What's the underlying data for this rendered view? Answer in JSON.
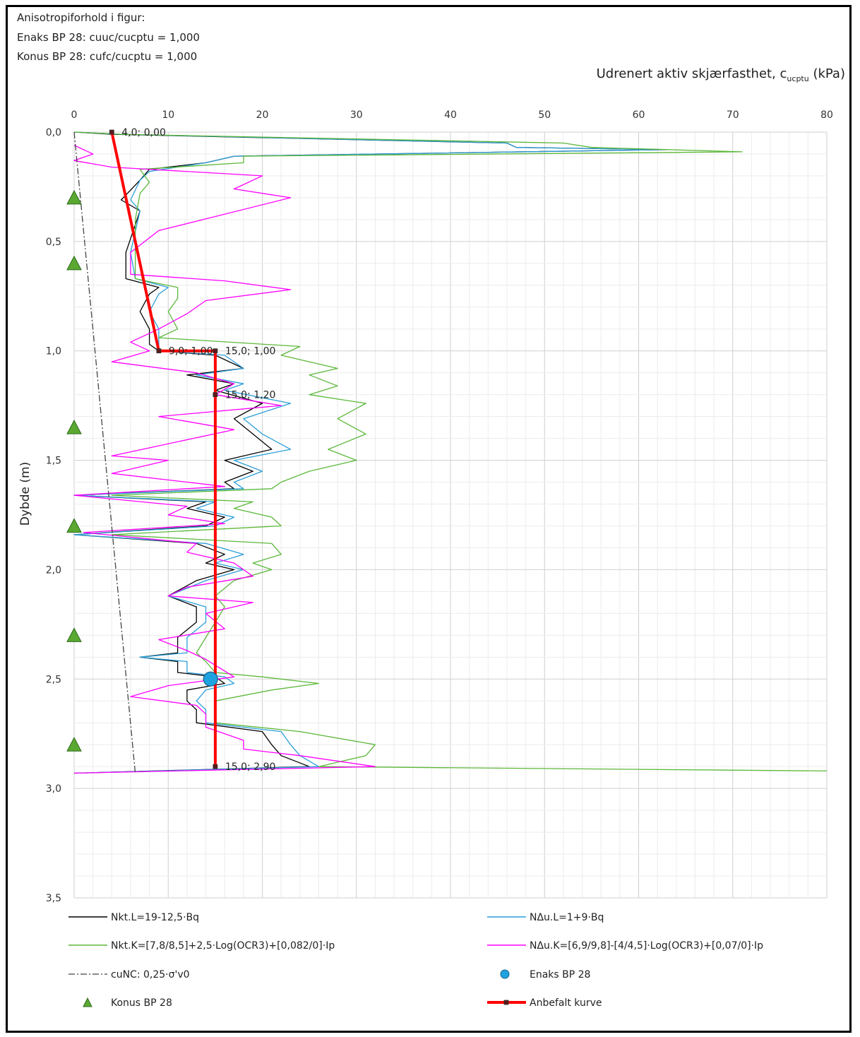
{
  "notes": [
    "Anisotropiforhold i figur:",
    "Enaks BP 28: cuuc/cucptu = 1,000",
    "Konus BP 28: cufc/cucptu = 1,000"
  ],
  "chart_data": {
    "type": "line",
    "title": "",
    "xlabel": "Udrenert aktiv skjærfasthet, c",
    "xlabel_sub": "ucptu",
    "xlabel_unit": " (kPa)",
    "ylabel": "Dybde (m)",
    "xlim": [
      0,
      80
    ],
    "ylim": [
      0,
      3.5
    ],
    "y_inverted": true,
    "x_axis_position": "top",
    "grid": true,
    "xticks": [
      "0",
      "10",
      "20",
      "30",
      "40",
      "50",
      "60",
      "70",
      "80"
    ],
    "yticks": [
      "0,0",
      "0,5",
      "1,0",
      "1,5",
      "2,0",
      "2,5",
      "3,0",
      "3,5"
    ],
    "series": [
      {
        "name": "Nkt.L=19-12,5·Bq",
        "color": "#000000",
        "points": [
          [
            0,
            0.0
          ],
          [
            4,
            0.01
          ],
          [
            46,
            0.05
          ],
          [
            47,
            0.07
          ],
          [
            63,
            0.08
          ],
          [
            17,
            0.11
          ],
          [
            14,
            0.14
          ],
          [
            8,
            0.17
          ],
          [
            7,
            0.22
          ],
          [
            5,
            0.31
          ],
          [
            7,
            0.36
          ],
          [
            5.5,
            0.55
          ],
          [
            5.5,
            0.67
          ],
          [
            9,
            0.71
          ],
          [
            8,
            0.74
          ],
          [
            7,
            0.82
          ],
          [
            8,
            0.9
          ],
          [
            8,
            0.97
          ],
          [
            9,
            1.0
          ],
          [
            15,
            1.02
          ],
          [
            18,
            1.08
          ],
          [
            12,
            1.11
          ],
          [
            17,
            1.15
          ],
          [
            15,
            1.18
          ],
          [
            20,
            1.24
          ],
          [
            17,
            1.31
          ],
          [
            19,
            1.38
          ],
          [
            21,
            1.45
          ],
          [
            16,
            1.5
          ],
          [
            19,
            1.55
          ],
          [
            16,
            1.6
          ],
          [
            17,
            1.63
          ],
          [
            0,
            1.66
          ],
          [
            14,
            1.69
          ],
          [
            12,
            1.72
          ],
          [
            16,
            1.76
          ],
          [
            14,
            1.8
          ],
          [
            0,
            1.84
          ],
          [
            13,
            1.88
          ],
          [
            16,
            1.93
          ],
          [
            14,
            1.97
          ],
          [
            17,
            2.0
          ],
          [
            13,
            2.05
          ],
          [
            10,
            2.12
          ],
          [
            13,
            2.17
          ],
          [
            13,
            2.24
          ],
          [
            11,
            2.31
          ],
          [
            11,
            2.38
          ],
          [
            7,
            2.4
          ],
          [
            11,
            2.42
          ],
          [
            11,
            2.47
          ],
          [
            15,
            2.49
          ],
          [
            16,
            2.52
          ],
          [
            12,
            2.55
          ],
          [
            12,
            2.6
          ],
          [
            13,
            2.64
          ],
          [
            13,
            2.7
          ],
          [
            20,
            2.74
          ],
          [
            21,
            2.8
          ],
          [
            22,
            2.85
          ],
          [
            25,
            2.9
          ],
          [
            0,
            2.93
          ]
        ]
      },
      {
        "name": "NΔu.L=1+9·Bq",
        "color": "#2b9fd8",
        "points": [
          [
            0,
            0.0
          ],
          [
            5,
            0.01
          ],
          [
            46,
            0.05
          ],
          [
            47,
            0.07
          ],
          [
            63,
            0.08
          ],
          [
            17,
            0.11
          ],
          [
            14,
            0.14
          ],
          [
            8,
            0.18
          ],
          [
            7,
            0.22
          ],
          [
            6,
            0.31
          ],
          [
            7,
            0.36
          ],
          [
            6,
            0.55
          ],
          [
            6.5,
            0.67
          ],
          [
            10,
            0.71
          ],
          [
            9,
            0.74
          ],
          [
            8,
            0.82
          ],
          [
            9,
            0.9
          ],
          [
            9,
            0.97
          ],
          [
            9,
            1.0
          ],
          [
            16,
            1.02
          ],
          [
            18,
            1.08
          ],
          [
            13,
            1.11
          ],
          [
            18,
            1.15
          ],
          [
            16,
            1.18
          ],
          [
            23,
            1.24
          ],
          [
            18,
            1.31
          ],
          [
            20,
            1.38
          ],
          [
            23,
            1.45
          ],
          [
            17,
            1.5
          ],
          [
            20,
            1.55
          ],
          [
            17,
            1.6
          ],
          [
            18,
            1.63
          ],
          [
            0,
            1.66
          ],
          [
            15,
            1.69
          ],
          [
            13,
            1.72
          ],
          [
            17,
            1.76
          ],
          [
            15,
            1.8
          ],
          [
            0,
            1.84
          ],
          [
            14,
            1.88
          ],
          [
            18,
            1.93
          ],
          [
            15,
            1.97
          ],
          [
            18,
            2.0
          ],
          [
            14,
            2.05
          ],
          [
            10,
            2.12
          ],
          [
            14,
            2.17
          ],
          [
            14,
            2.24
          ],
          [
            12,
            2.31
          ],
          [
            12,
            2.38
          ],
          [
            7,
            2.4
          ],
          [
            12,
            2.42
          ],
          [
            12,
            2.47
          ],
          [
            16,
            2.49
          ],
          [
            17,
            2.52
          ],
          [
            14,
            2.55
          ],
          [
            13,
            2.6
          ],
          [
            14,
            2.64
          ],
          [
            14,
            2.7
          ],
          [
            22,
            2.74
          ],
          [
            23,
            2.8
          ],
          [
            24,
            2.85
          ],
          [
            26,
            2.9
          ],
          [
            0,
            2.93
          ]
        ]
      },
      {
        "name": "Nkt.K=[7,8/8,5]+2,5·Log(OCR3)+[0,082/0]·Ip",
        "color": "#5cb83a",
        "points": [
          [
            0,
            0.0
          ],
          [
            5,
            0.01
          ],
          [
            52,
            0.05
          ],
          [
            55,
            0.07
          ],
          [
            71,
            0.09
          ],
          [
            18,
            0.11
          ],
          [
            18,
            0.14
          ],
          [
            7,
            0.17
          ],
          [
            8,
            0.23
          ],
          [
            7,
            0.28
          ],
          [
            6.5,
            0.4
          ],
          [
            6.5,
            0.67
          ],
          [
            11,
            0.71
          ],
          [
            11,
            0.76
          ],
          [
            10,
            0.82
          ],
          [
            11,
            0.9
          ],
          [
            9,
            0.94
          ],
          [
            24,
            0.98
          ],
          [
            22,
            1.02
          ],
          [
            28,
            1.08
          ],
          [
            25,
            1.11
          ],
          [
            28,
            1.16
          ],
          [
            25,
            1.2
          ],
          [
            31,
            1.24
          ],
          [
            28,
            1.31
          ],
          [
            31,
            1.38
          ],
          [
            27,
            1.45
          ],
          [
            30,
            1.5
          ],
          [
            25,
            1.55
          ],
          [
            22,
            1.6
          ],
          [
            21,
            1.63
          ],
          [
            4,
            1.66
          ],
          [
            19,
            1.69
          ],
          [
            17,
            1.72
          ],
          [
            21,
            1.76
          ],
          [
            22,
            1.8
          ],
          [
            4,
            1.84
          ],
          [
            21,
            1.88
          ],
          [
            22,
            1.93
          ],
          [
            19,
            1.97
          ],
          [
            21,
            2.0
          ],
          [
            17,
            2.05
          ],
          [
            15,
            2.12
          ],
          [
            16,
            2.17
          ],
          [
            15,
            2.24
          ],
          [
            14,
            2.31
          ],
          [
            13,
            2.38
          ],
          [
            14,
            2.42
          ],
          [
            15,
            2.47
          ],
          [
            20,
            2.49
          ],
          [
            26,
            2.52
          ],
          [
            21,
            2.55
          ],
          [
            15,
            2.6
          ],
          [
            15,
            2.65
          ],
          [
            15,
            2.7
          ],
          [
            24,
            2.74
          ],
          [
            32,
            2.8
          ],
          [
            31,
            2.85
          ],
          [
            26,
            2.9
          ],
          [
            80,
            2.92
          ]
        ]
      },
      {
        "name": "NΔu.K=[6,9/9,8]-[4/4,5]·Log(OCR3)+[0,07/0]·Ip",
        "color": "#ff00ff",
        "points": [
          [
            0,
            0.06
          ],
          [
            2,
            0.1
          ],
          [
            0,
            0.13
          ],
          [
            4,
            0.16
          ],
          [
            20,
            0.2
          ],
          [
            17,
            0.26
          ],
          [
            23,
            0.3
          ],
          [
            9,
            0.45
          ],
          [
            6,
            0.55
          ],
          [
            6,
            0.65
          ],
          [
            16,
            0.68
          ],
          [
            23,
            0.72
          ],
          [
            14,
            0.77
          ],
          [
            12,
            0.83
          ],
          [
            9,
            0.9
          ],
          [
            6,
            0.96
          ],
          [
            8,
            1.0
          ],
          [
            4,
            1.05
          ],
          [
            13,
            1.1
          ],
          [
            17,
            1.15
          ],
          [
            15,
            1.2
          ],
          [
            22,
            1.25
          ],
          [
            9,
            1.3
          ],
          [
            17,
            1.36
          ],
          [
            4,
            1.48
          ],
          [
            10,
            1.5
          ],
          [
            4,
            1.56
          ],
          [
            16,
            1.62
          ],
          [
            0,
            1.66
          ],
          [
            12,
            1.71
          ],
          [
            10,
            1.75
          ],
          [
            16,
            1.79
          ],
          [
            1,
            1.83
          ],
          [
            13,
            1.88
          ],
          [
            12,
            1.92
          ],
          [
            17,
            1.97
          ],
          [
            19,
            2.03
          ],
          [
            12,
            2.08
          ],
          [
            10,
            2.12
          ],
          [
            19,
            2.15
          ],
          [
            14,
            2.2
          ],
          [
            16,
            2.27
          ],
          [
            9,
            2.32
          ],
          [
            12,
            2.37
          ],
          [
            14,
            2.41
          ],
          [
            17,
            2.49
          ],
          [
            10,
            2.53
          ],
          [
            6,
            2.58
          ],
          [
            13,
            2.62
          ],
          [
            14,
            2.66
          ],
          [
            14,
            2.72
          ],
          [
            18,
            2.78
          ],
          [
            18,
            2.82
          ],
          [
            24,
            2.85
          ],
          [
            32,
            2.9
          ],
          [
            0,
            2.93
          ]
        ]
      },
      {
        "name": "cuNC: 0,25·σ'v0",
        "color": "#444444",
        "dash": "9,3,2,3",
        "points": [
          [
            0,
            0.0
          ],
          [
            6.5,
            2.93
          ]
        ]
      },
      {
        "name": "Anbefalt kurve",
        "color": "#ff0000",
        "points": [
          [
            4,
            0.0
          ],
          [
            9,
            1.0
          ],
          [
            15,
            1.0
          ],
          [
            15,
            1.2
          ],
          [
            15,
            2.9
          ]
        ]
      }
    ],
    "data_labels": [
      {
        "x": 4,
        "y": 0.0,
        "text": "4,0; 0,00"
      },
      {
        "x": 9,
        "y": 1.0,
        "text": "9,0; 1,00"
      },
      {
        "x": 15,
        "y": 1.0,
        "text": "15,0; 1,00"
      },
      {
        "x": 15,
        "y": 1.2,
        "text": "15,0; 1,20"
      },
      {
        "x": 15,
        "y": 2.9,
        "text": "15,0; 2,90"
      }
    ],
    "enaks_points": {
      "name": "Enaks BP 28",
      "color": "#1fa3e0",
      "points": [
        [
          14.5,
          2.5
        ]
      ]
    },
    "konus_points": {
      "name": "Konus BP 28",
      "color": "#5aa832",
      "points": [
        [
          0,
          0.3
        ],
        [
          0,
          0.6
        ],
        [
          0,
          1.35
        ],
        [
          0,
          1.8
        ],
        [
          0,
          2.3
        ],
        [
          0,
          2.8
        ]
      ]
    },
    "legend": [
      {
        "label": "Nkt.L=19-12,5·Bq",
        "kind": "line",
        "color": "#000000"
      },
      {
        "label": "NΔu.L=1+9·Bq",
        "kind": "line",
        "color": "#2b9fd8"
      },
      {
        "label": "Nkt.K=[7,8/8,5]+2,5·Log(OCR3)+[0,082/0]·Ip",
        "kind": "line",
        "color": "#5cb83a"
      },
      {
        "label": "NΔu.K=[6,9/9,8]-[4/4,5]·Log(OCR3)+[0,07/0]·Ip",
        "kind": "line",
        "color": "#ff00ff"
      },
      {
        "label": "cuNC: 0,25·σ'v0",
        "kind": "dashdot",
        "color": "#444444"
      },
      {
        "label": "Enaks BP 28",
        "kind": "circle",
        "color": "#1fa3e0"
      },
      {
        "label": "Konus BP 28",
        "kind": "triangle",
        "color": "#5aa832"
      },
      {
        "label": "Anbefalt kurve",
        "kind": "redline",
        "color": "#ff0000"
      }
    ]
  }
}
